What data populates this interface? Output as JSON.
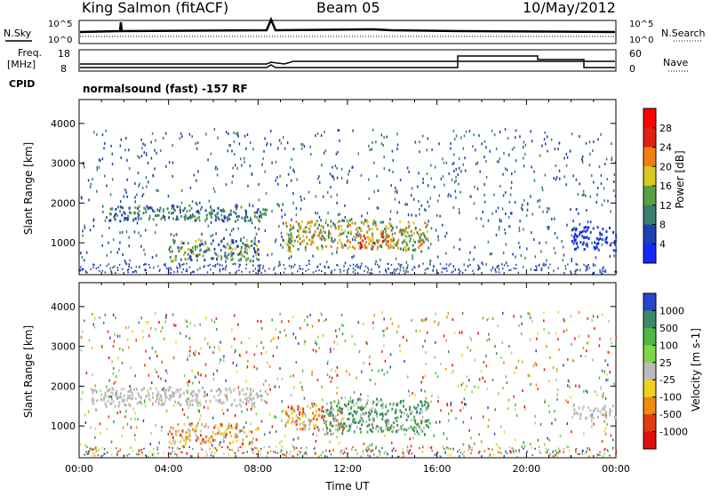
{
  "header": {
    "station": "King Salmon (fitACF)",
    "beam": "Beam 05",
    "date": "10/May/2012"
  },
  "top_panels": {
    "nsky_label": "N.Sky",
    "nsearch_label": "N.Search",
    "noise_ticks": [
      "10^5",
      "10^0"
    ],
    "freq_label_line1": "Freq.",
    "freq_label_line2": "[MHz]",
    "freq_ticks": [
      "18",
      "8"
    ],
    "nave_label": "Nave",
    "nave_ticks": [
      "60",
      "0"
    ],
    "cpid_label": "CPID",
    "cpid_text": "normalsound (fast) -157 RF"
  },
  "chart_data": [
    {
      "type": "heatmap",
      "title": "",
      "xlabel": "",
      "ylabel": "Slant Range [km]",
      "x_range_hours": [
        0,
        24
      ],
      "ylim": [
        200,
        4600
      ],
      "y_ticks": [
        1000,
        2000,
        3000,
        4000
      ],
      "colorbar_label": "Power [dB]",
      "colorbar_ticks": [
        4,
        8,
        12,
        16,
        20,
        24,
        28
      ],
      "colorbar_colors": [
        "#1428ff",
        "#2040b0",
        "#3c7c6e",
        "#5aa040",
        "#d8c820",
        "#f08010",
        "#e02010",
        "#ff0000"
      ],
      "features": [
        {
          "hours": [
            1.0,
            8.4
          ],
          "range_km": [
            1550,
            2000
          ],
          "level": "low-mid"
        },
        {
          "hours": [
            4.0,
            8.0
          ],
          "range_km": [
            550,
            1200
          ],
          "level": "mid"
        },
        {
          "hours": [
            7.2,
            7.7
          ],
          "range_km": [
            650,
            1000
          ],
          "level": "high"
        },
        {
          "hours": [
            9.2,
            15.6
          ],
          "range_km": [
            800,
            1700
          ],
          "level": "high"
        },
        {
          "hours": [
            12.5,
            14.0
          ],
          "range_km": [
            900,
            1300
          ],
          "level": "max"
        },
        {
          "hours": [
            22.0,
            24.0
          ],
          "range_km": [
            800,
            1500
          ],
          "level": "low"
        }
      ]
    },
    {
      "type": "heatmap",
      "title": "",
      "xlabel": "Time UT",
      "ylabel": "Slant Range [km]",
      "x_range_hours": [
        0,
        24
      ],
      "ylim": [
        200,
        4600
      ],
      "y_ticks": [
        1000,
        2000,
        3000,
        4000
      ],
      "x_tick_labels": [
        "00:00",
        "04:00",
        "08:00",
        "12:00",
        "16:00",
        "20:00",
        "00:00"
      ],
      "colorbar_label": "Velocity [m s-1]",
      "colorbar_ticks": [
        "1000",
        "500",
        "100",
        "25",
        "-25",
        "-100",
        "-500",
        "-1000"
      ],
      "colorbar_colors": [
        "#2846c8",
        "#3a8a6a",
        "#50b840",
        "#7cd848",
        "#bcbcbc",
        "#f0d020",
        "#f08a10",
        "#e03a10",
        "#e01010"
      ],
      "features": [
        {
          "hours": [
            0.5,
            8.3
          ],
          "range_km": [
            1500,
            2050
          ],
          "class": "ground (grey)"
        },
        {
          "hours": [
            4.0,
            8.0
          ],
          "range_km": [
            550,
            1150
          ],
          "class": "-100 to -500 (orange)"
        },
        {
          "hours": [
            9.2,
            11.8
          ],
          "range_km": [
            900,
            1600
          ],
          "class": "-100 to -500 (orange)"
        },
        {
          "hours": [
            11.0,
            15.7
          ],
          "range_km": [
            800,
            1800
          ],
          "class": "100 to 500 (green)"
        },
        {
          "hours": [
            22.0,
            24.0
          ],
          "range_km": [
            1200,
            1600
          ],
          "class": "ground (grey)"
        }
      ]
    }
  ],
  "x_axis": {
    "tick_labels": [
      "00:00",
      "04:00",
      "08:00",
      "12:00",
      "16:00",
      "20:00",
      "00:00"
    ],
    "label": "Time UT"
  },
  "colors": {
    "axis": "#000000",
    "ground_grey": "#bcbcbc"
  }
}
